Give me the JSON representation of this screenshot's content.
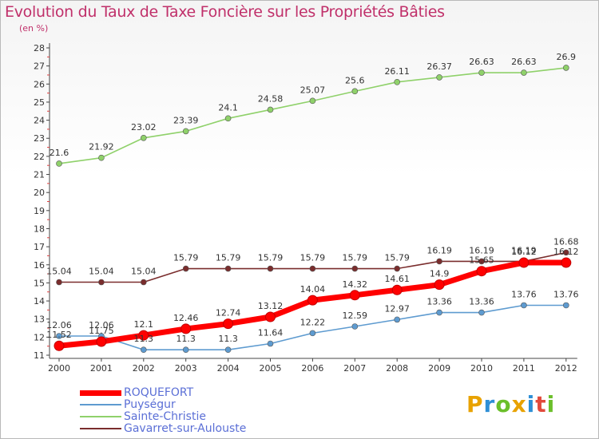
{
  "header": {
    "title": "Evolution du Taux de Taxe Foncière sur les Propriétés Bâties",
    "unit": "(en %)"
  },
  "logo": {
    "text": "Proxiti",
    "letters": [
      "P",
      "r",
      "o",
      "x",
      "i",
      "t",
      "i"
    ],
    "colors": [
      "#e8a200",
      "#2e8fd6",
      "#6bbf2a",
      "#e8a200",
      "#2e8fd6",
      "#e14a3c",
      "#6bbf2a"
    ]
  },
  "chart_data": {
    "type": "line",
    "title": "Evolution du Taux de Taxe Foncière sur les Propriétés Bâties",
    "ylabel": "(en %)",
    "xlabel": "",
    "x": [
      "2000",
      "2001",
      "2002",
      "2003",
      "2004",
      "2005",
      "2006",
      "2007",
      "2008",
      "2009",
      "2010",
      "2011",
      "2012"
    ],
    "ylim": [
      11,
      28
    ],
    "yticks": [
      11,
      12,
      13,
      14,
      15,
      16,
      17,
      18,
      19,
      20,
      21,
      22,
      23,
      24,
      25,
      26,
      27,
      28
    ],
    "grid": false,
    "legend_position": "bottom-left",
    "series": [
      {
        "name": "ROQUEFORT",
        "color": "#ff0000",
        "values": [
          11.52,
          11.75,
          12.1,
          12.46,
          12.74,
          13.12,
          14.04,
          14.32,
          14.61,
          14.9,
          15.65,
          16.12,
          16.12
        ],
        "labels": [
          "11.52",
          "11.75",
          "12.1",
          "12.46",
          "12.74",
          "13.12",
          "14.04",
          "14.32",
          "14.61",
          "14.9",
          "15.65",
          "16.12",
          "16.12"
        ]
      },
      {
        "name": "Puységur",
        "color": "#5e9bd0",
        "values": [
          12.06,
          12.06,
          11.3,
          11.3,
          11.3,
          11.64,
          12.22,
          12.59,
          12.97,
          13.36,
          13.36,
          13.76,
          13.76
        ],
        "labels": [
          "12.06",
          "12.06",
          "11.3",
          "11.3",
          "11.3",
          "11.64",
          "12.22",
          "12.59",
          "12.97",
          "13.36",
          "13.36",
          "13.76",
          "13.76"
        ]
      },
      {
        "name": "Sainte-Christie",
        "color": "#8fd16a",
        "values": [
          21.6,
          21.92,
          23.02,
          23.39,
          24.1,
          24.58,
          25.07,
          25.6,
          26.11,
          26.37,
          26.63,
          26.63,
          26.9
        ],
        "labels": [
          "21.6",
          "21.92",
          "23.02",
          "23.39",
          "24.1",
          "24.58",
          "25.07",
          "25.6",
          "26.11",
          "26.37",
          "26.63",
          "26.63",
          "26.9"
        ]
      },
      {
        "name": "Gavarret-sur-Aulouste",
        "color": "#7a2d2d",
        "values": [
          15.04,
          15.04,
          15.04,
          15.79,
          15.79,
          15.79,
          15.79,
          15.79,
          15.79,
          16.19,
          16.19,
          16.19,
          16.68
        ],
        "labels": [
          "15.04",
          "15.04",
          "15.04",
          "15.79",
          "15.79",
          "15.79",
          "15.79",
          "15.79",
          "15.79",
          "16.19",
          "16.19",
          "16.19",
          "16.68"
        ]
      }
    ]
  }
}
